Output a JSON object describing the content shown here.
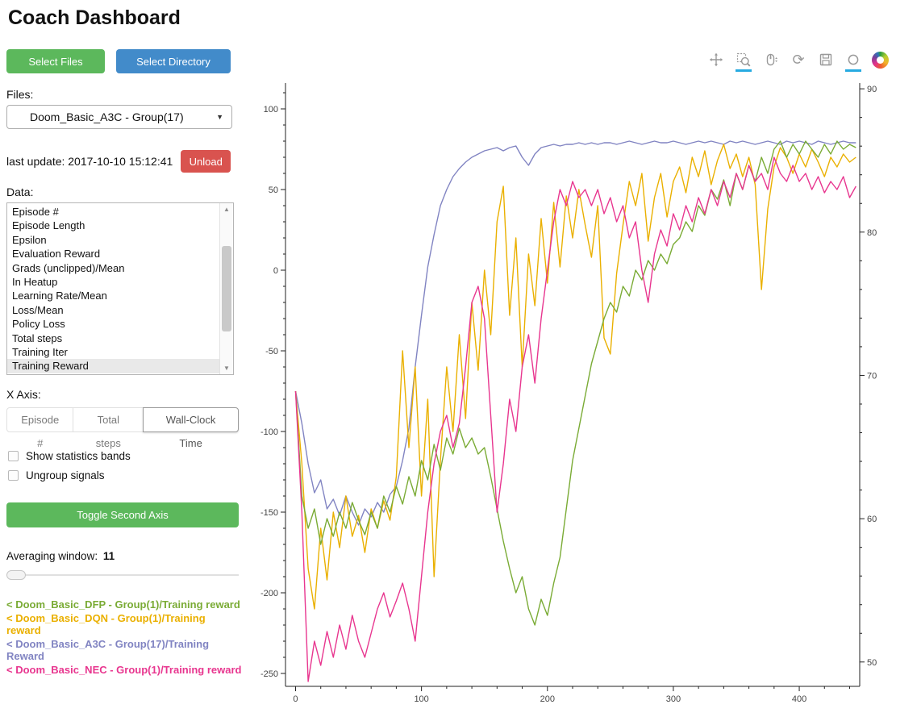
{
  "page": {
    "title": "Coach Dashboard"
  },
  "sidebar": {
    "select_files_label": "Select Files",
    "select_directory_label": "Select Directory",
    "files_label": "Files:",
    "files_selected": "Doom_Basic_A3C - Group(17)",
    "last_update": "last update: 2017-10-10 15:12:41",
    "unload_label": "Unload",
    "data_label": "Data:",
    "data_items": [
      "Episode #",
      "Episode Length",
      "Epsilon",
      "Evaluation Reward",
      "Grads (unclipped)/Mean",
      "In Heatup",
      "Learning Rate/Mean",
      "Loss/Mean",
      "Policy Loss",
      "Total steps",
      "Training Iter",
      "Training Reward"
    ],
    "data_selected": "Training Reward",
    "x_axis_label": "X Axis:",
    "x_axis_options": [
      "Episode #",
      "Total steps",
      "Wall-Clock Time"
    ],
    "x_axis_selected": "Wall-Clock Time",
    "checkboxes": [
      {
        "label": "Show statistics bands",
        "checked": false
      },
      {
        "label": "Ungroup signals",
        "checked": false
      }
    ],
    "toggle_second_axis_label": "Toggle Second Axis",
    "averaging_label": "Averaging window:",
    "averaging_value": "11",
    "legend": [
      {
        "label": "< Doom_Basic_DFP - Group(1)/Training reward",
        "color": "#7aab35"
      },
      {
        "label": "< Doom_Basic_DQN - Group(1)/Training reward",
        "color": "#eab000"
      },
      {
        "label": "< Doom_Basic_A3C - Group(17)/Training Reward",
        "color": "#8184c2"
      },
      {
        "label": "< Doom_Basic_NEC - Group(1)/Training reward",
        "color": "#e8368f"
      }
    ]
  },
  "toolbar": {
    "icons": [
      "pan-icon",
      "box-zoom-icon",
      "wheel-zoom-icon",
      "reset-icon",
      "save-icon",
      "hover-icon",
      "bokeh-logo"
    ],
    "active_tools": [
      "box-zoom-icon",
      "hover-icon"
    ],
    "active_color": "#26aae1"
  },
  "chart_data": {
    "type": "line",
    "title": "",
    "xlabel": "",
    "ylabel": "",
    "grid": false,
    "legend_position": "sidebar",
    "x_range": [
      -8,
      448
    ],
    "y_range": [
      -258,
      116
    ],
    "y2_range": [
      48.3,
      90.4
    ],
    "x_ticks": [
      0,
      100,
      200,
      300,
      400
    ],
    "y_ticks": [
      100,
      50,
      0,
      -50,
      -100,
      -150,
      -200,
      -250
    ],
    "y2_ticks": [
      90,
      80,
      70,
      60,
      50
    ],
    "series": [
      {
        "name": "Doom_Basic_A3C - Group(17)/Training Reward",
        "color": "#8184c2",
        "x_start": 0,
        "x_step": 5,
        "values": [
          -75,
          -95,
          -120,
          -138,
          -130,
          -148,
          -142,
          -152,
          -140,
          -150,
          -158,
          -148,
          -153,
          -144,
          -150,
          -139,
          -134,
          -118,
          -98,
          -60,
          -28,
          2,
          22,
          40,
          50,
          58,
          63,
          67,
          70,
          72,
          74,
          75,
          76,
          74,
          76,
          77,
          70,
          65,
          72,
          76,
          77,
          78,
          77,
          78,
          78,
          79,
          78,
          79,
          78,
          79,
          79,
          78,
          79,
          80,
          79,
          78,
          79,
          80,
          79,
          79,
          80,
          79,
          78,
          79,
          80,
          79,
          80,
          79,
          78,
          80,
          79,
          80,
          79,
          78,
          79,
          80,
          79,
          78,
          80,
          79,
          80,
          79,
          78,
          80,
          79,
          78,
          79,
          80,
          79,
          79
        ]
      },
      {
        "name": "Doom_Basic_DQN - Group(1)/Training reward",
        "color": "#eab000",
        "x_start": 0,
        "x_step": 5,
        "values": [
          -75,
          -120,
          -185,
          -210,
          -160,
          -192,
          -150,
          -172,
          -140,
          -165,
          -152,
          -175,
          -148,
          -160,
          -143,
          -155,
          -128,
          -50,
          -110,
          -60,
          -140,
          -80,
          -190,
          -118,
          -60,
          -100,
          -40,
          -92,
          -20,
          -62,
          0,
          -40,
          30,
          52,
          -28,
          20,
          -60,
          10,
          -22,
          32,
          -8,
          42,
          2,
          46,
          20,
          50,
          28,
          8,
          40,
          -42,
          -52,
          -2,
          28,
          55,
          40,
          60,
          18,
          45,
          60,
          33,
          55,
          64,
          48,
          70,
          58,
          74,
          53,
          68,
          78,
          63,
          72,
          58,
          70,
          53,
          -12,
          38,
          64,
          76,
          70,
          60,
          72,
          64,
          75,
          67,
          58,
          70,
          64,
          72,
          67,
          70
        ]
      },
      {
        "name": "Doom_Basic_DFP - Group(1)/Training reward",
        "color": "#7aab35",
        "x_start": 0,
        "x_step": 5,
        "values": [
          -75,
          -140,
          -160,
          -148,
          -170,
          -154,
          -165,
          -150,
          -160,
          -144,
          -155,
          -164,
          -150,
          -160,
          -140,
          -150,
          -134,
          -145,
          -128,
          -140,
          -118,
          -130,
          -108,
          -124,
          -104,
          -114,
          -98,
          -110,
          -104,
          -114,
          -110,
          -128,
          -148,
          -168,
          -185,
          -200,
          -190,
          -210,
          -220,
          -204,
          -214,
          -194,
          -178,
          -148,
          -118,
          -98,
          -78,
          -58,
          -44,
          -30,
          -20,
          -26,
          -10,
          -16,
          0,
          -6,
          6,
          0,
          10,
          4,
          16,
          20,
          30,
          24,
          40,
          34,
          50,
          44,
          56,
          40,
          60,
          50,
          65,
          55,
          70,
          60,
          75,
          80,
          70,
          78,
          72,
          80,
          75,
          70,
          78,
          72,
          80,
          75,
          78,
          76
        ]
      },
      {
        "name": "Doom_Basic_NEC - Group(1)/Training reward",
        "color": "#e8368f",
        "x_start": 0,
        "x_step": 5,
        "values": [
          -75,
          -150,
          -255,
          -230,
          -245,
          -224,
          -240,
          -220,
          -235,
          -214,
          -230,
          -240,
          -225,
          -210,
          -200,
          -215,
          -205,
          -194,
          -210,
          -230,
          -190,
          -150,
          -120,
          -100,
          -90,
          -110,
          -95,
          -60,
          -20,
          -10,
          -30,
          -90,
          -150,
          -120,
          -80,
          -100,
          -60,
          -40,
          -70,
          -30,
          0,
          30,
          50,
          40,
          55,
          45,
          50,
          40,
          50,
          35,
          45,
          30,
          40,
          20,
          30,
          0,
          -20,
          10,
          25,
          15,
          35,
          25,
          40,
          30,
          45,
          35,
          50,
          40,
          55,
          45,
          60,
          50,
          65,
          55,
          60,
          50,
          70,
          60,
          55,
          65,
          55,
          60,
          50,
          58,
          48,
          55,
          50,
          58,
          45,
          52
        ]
      }
    ]
  }
}
